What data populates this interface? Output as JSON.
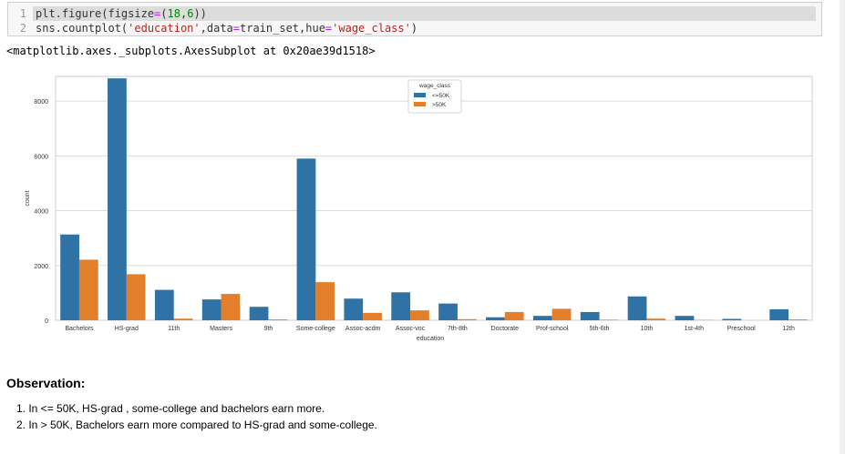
{
  "code_cell": {
    "lines": [
      {
        "number": "1"
      },
      {
        "number": "2"
      }
    ],
    "line1_tokens": [
      "plt.figure(figsize",
      "=",
      "(",
      "18",
      ",",
      "6",
      "))"
    ],
    "line2_tokens": [
      "sns.countplot(",
      "'education'",
      ",data",
      "=",
      "train_set,hue",
      "=",
      "'wage_class'",
      ")"
    ]
  },
  "output": {
    "text": "<matplotlib.axes._subplots.AxesSubplot at 0x20ae39d1518>"
  },
  "chart_data": {
    "type": "bar",
    "xlabel": "education",
    "ylabel": "count",
    "ylim": [
      0,
      8900
    ],
    "yticks": [
      0,
      2000,
      4000,
      6000,
      8000
    ],
    "grid": true,
    "legend": {
      "title": "wage_class",
      "placement": "top-center"
    },
    "categories": [
      "Bachelors",
      "HS-grad",
      "11th",
      "Masters",
      "9th",
      "Some-college",
      "Assoc-acdm",
      "Assoc-voc",
      "7th-8th",
      "Doctorate",
      "Prof-school",
      "5th-6th",
      "10th",
      "1st-4th",
      "Preschool",
      "12th"
    ],
    "series": [
      {
        "name": "<=50K",
        "color": "#2e72a6",
        "values": [
          3130,
          8830,
          1110,
          760,
          490,
          5900,
          790,
          1020,
          610,
          110,
          160,
          300,
          870,
          160,
          50,
          400
        ]
      },
      {
        "name": ">50K",
        "color": "#e37f2a",
        "values": [
          2210,
          1680,
          60,
          960,
          30,
          1390,
          270,
          360,
          40,
          300,
          420,
          20,
          60,
          10,
          0,
          30
        ]
      }
    ]
  },
  "observation": {
    "title": "Observation:",
    "items": [
      "1. In <= 50K, HS-grad , some-college and bachelors earn more.",
      "2. In > 50K, Bachelors earn more compared to HS-grad and some-college."
    ]
  }
}
